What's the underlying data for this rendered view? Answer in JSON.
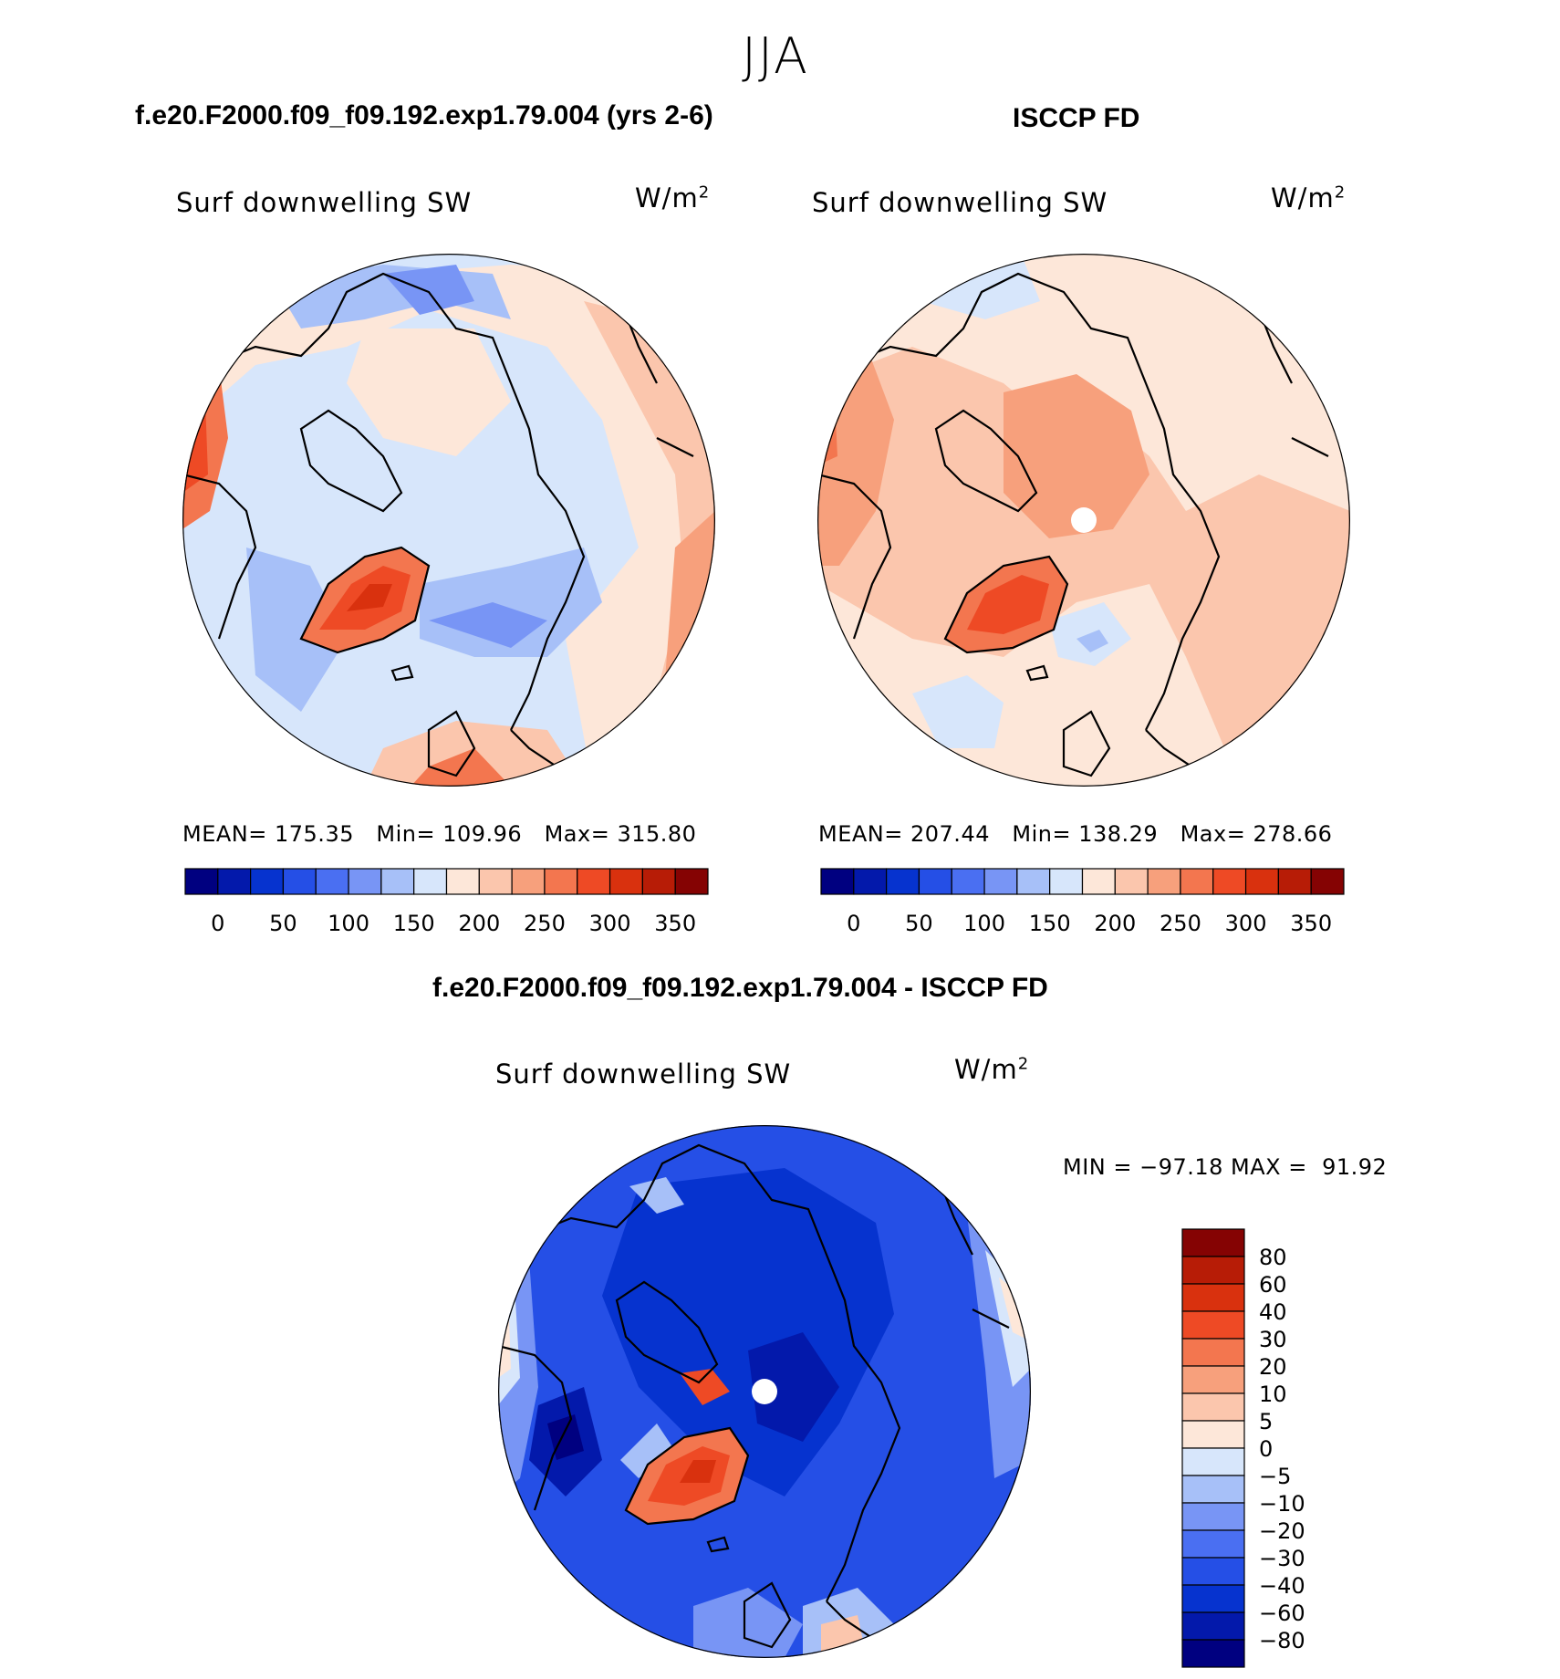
{
  "page": {
    "season": "JJA",
    "title_model": "f.e20.F2000.f09_f09.192.exp1.79.004 (yrs 2-6)",
    "title_obs": "ISCCP FD",
    "title_diff": "f.e20.F2000.f09_f09.192.exp1.79.004 - ISCCP FD"
  },
  "colors": {
    "sequential_scale": [
      "#000080",
      "#0319ab",
      "#0633cf",
      "#254fe6",
      "#4a6ff2",
      "#7895f5",
      "#a7c0f8",
      "#d7e6fb",
      "#fde7d9",
      "#fbc6ad",
      "#f7a07c",
      "#f3764f",
      "#ee4a25",
      "#d9310e",
      "#b71c06",
      "#850303"
    ],
    "diff_scale": [
      "#000080",
      "#0319ab",
      "#0633cf",
      "#254fe6",
      "#4a6ff2",
      "#7895f5",
      "#a7c0f8",
      "#d7e6fb",
      "#fde7d9",
      "#fbc6ad",
      "#f7a07c",
      "#f3764f",
      "#ee4a25",
      "#d9310e",
      "#b71c06",
      "#850303"
    ]
  },
  "chart_data": [
    {
      "type": "heatmap",
      "projection": "north-polar-stereographic",
      "variable": "Surf downwelling SW",
      "units": "W/m",
      "units_exp": "2",
      "stats": {
        "mean_label": "MEAN=",
        "mean": "175.35",
        "min_label": "Min=",
        "min": "109.96",
        "max_label": "Max=",
        "max": "315.80"
      },
      "colorbar_levels": [
        "0",
        "50",
        "100",
        "150",
        "200",
        "250",
        "300",
        "350"
      ]
    },
    {
      "type": "heatmap",
      "projection": "north-polar-stereographic",
      "variable": "Surf downwelling SW",
      "units": "W/m",
      "units_exp": "2",
      "stats": {
        "mean_label": "MEAN=",
        "mean": "207.44",
        "min_label": "Min=",
        "min": "138.29",
        "max_label": "Max=",
        "max": "278.66"
      },
      "colorbar_levels": [
        "0",
        "50",
        "100",
        "150",
        "200",
        "250",
        "300",
        "350"
      ]
    },
    {
      "type": "heatmap",
      "projection": "north-polar-stereographic",
      "variable": "Surf downwelling SW",
      "units": "W/m",
      "units_exp": "2",
      "stats_text": "MIN = −97.18 MAX =  91.92",
      "colorbar_levels": [
        "80",
        "60",
        "40",
        "30",
        "20",
        "10",
        "5",
        "0",
        "−5",
        "−10",
        "−20",
        "−30",
        "−40",
        "−60",
        "−80"
      ]
    }
  ]
}
